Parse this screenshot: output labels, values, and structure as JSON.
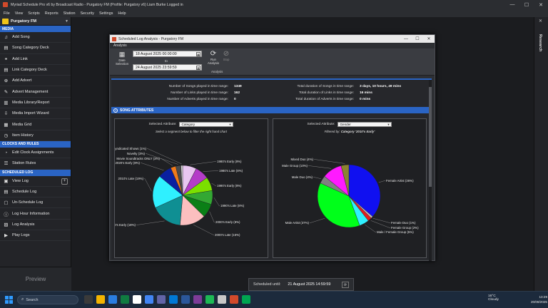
{
  "window": {
    "title": "Myriad Schedule Pro v6 by Broadcast Radio - Purgatory FM (Profile: Purgatory v6) Liam Burke Logged in",
    "controls": [
      "—",
      "☐",
      "✕"
    ]
  },
  "menu": [
    "File",
    "View",
    "Scripts",
    "Reports",
    "Station",
    "Security",
    "Settings",
    "Help"
  ],
  "sidebar": {
    "station": "Purgatory FM",
    "sections": [
      {
        "title": "MEDIA",
        "items": [
          {
            "label": "Add Song",
            "icon": "plus-music-icon"
          },
          {
            "label": "Song Category Deck",
            "icon": "deck-icon"
          },
          {
            "label": "Add Link",
            "icon": "plus-link-icon"
          },
          {
            "label": "Link Category Deck",
            "icon": "deck-icon"
          },
          {
            "label": "Add Advert",
            "icon": "plus-advert-icon"
          },
          {
            "label": "Advert Management",
            "icon": "advert-icon"
          },
          {
            "label": "Media Library/Report",
            "icon": "library-icon"
          },
          {
            "label": "Media Import Wizard",
            "icon": "import-icon"
          },
          {
            "label": "Media Grid",
            "icon": "grid-icon"
          },
          {
            "label": "Item History",
            "icon": "history-icon"
          }
        ]
      },
      {
        "title": "CLOCKS AND RULES",
        "items": [
          {
            "label": "Edit Clock Assignments",
            "icon": "clock-icon"
          },
          {
            "label": "Station Rules",
            "icon": "rules-icon"
          }
        ]
      },
      {
        "title": "SCHEDULED LOG",
        "items": [
          {
            "label": "View Log",
            "icon": "log-icon"
          },
          {
            "label": "Schedule Log",
            "icon": "schedule-icon"
          },
          {
            "label": "Un-Schedule Log",
            "icon": "unschedule-icon"
          },
          {
            "label": "Log Hour Information",
            "icon": "info-icon"
          },
          {
            "label": "Log Analysis",
            "icon": "analysis-icon"
          },
          {
            "label": "Play Logs",
            "icon": "play-icon"
          }
        ]
      }
    ],
    "preview": "Preview"
  },
  "research": {
    "label": "Research",
    "close": "✕"
  },
  "dialog": {
    "title": "Scheduled Log Analysis - Purgatory FM",
    "ribbon_tab": "Analysis",
    "date_selection": "Date Selection",
    "from_date": "18 August 2025 00:00:00",
    "to_label": "to",
    "to_date": "24 August 2025 23:59:59",
    "run_analysis": "Run Analysis",
    "stop": "Stop",
    "group_label": "Analysis",
    "stats_left": [
      {
        "label": "Number of Songs played in time range:",
        "value": "1349"
      },
      {
        "label": "Number of Links played in time range:",
        "value": "162"
      },
      {
        "label": "Number of Adverts played in time range:",
        "value": "0"
      }
    ],
    "stats_right": [
      {
        "label": "Total duration of Songs in time range:",
        "value": "3 days, 10 hours, 49 mins"
      },
      {
        "label": "Total duration of Links in time range:",
        "value": "16 mins"
      },
      {
        "label": "Total duration of Adverts in time range:",
        "value": "0 mins"
      }
    ],
    "attributes_header": "SONG ATTRIBUTES",
    "left_panel": {
      "selected_label": "Selected Attribute:",
      "selected_value": "Category",
      "hint": "Select a segment below to filter the right hand chart"
    },
    "right_panel": {
      "selected_label": "Selected Attribute:",
      "selected_value": "Gender",
      "filtered_label": "Filtered by:",
      "filtered_value": "Category '2010's Early'"
    }
  },
  "chart_data": [
    {
      "type": "pie",
      "title": "",
      "categories": [
        "1980's Early (8%)",
        "1980's Late (8%)",
        "1990's Early (8%)",
        "1990's Late (8%)",
        "2000's Early (8%)",
        "2000's Late (15%)",
        "2010's Early (18%)",
        "2010's Late (19%)",
        "2020's Early (8%)",
        "Movie Soundtracks ONLY (3%)",
        "Novelty (3%)",
        "Syndicated Shows (1%)"
      ],
      "values": [
        8,
        8,
        8,
        8,
        8,
        15,
        18,
        19,
        8,
        3,
        3,
        1
      ],
      "colors": [
        "#e8c6f0",
        "#b43cc8",
        "#7be000",
        "#33a833",
        "#0a7f16",
        "#fbbfbf",
        "#0f8f93",
        "#2ff0ff",
        "#0a1fa0",
        "#f07a1a",
        "#4a4a4a",
        "#d9d9d9"
      ]
    },
    {
      "type": "pie",
      "title": "",
      "categories": [
        "Female Artist (36%)",
        "Female Duo (1%)",
        "Female Group (2%)",
        "Male / Female Group (5%)",
        "Male Artist (37%)",
        "Male Duo (4%)",
        "Male Group (10%)",
        "Mixed Duo (4%)"
      ],
      "values": [
        36,
        1,
        2,
        5,
        37,
        4,
        10,
        4
      ],
      "colors": [
        "#1010f0",
        "#bdbdbd",
        "#e02020",
        "#2ff0ff",
        "#00ff1a",
        "#808080",
        "#ff1aff",
        "#8c8430"
      ]
    }
  ],
  "scheduled_until": {
    "label": "Scheduled until:",
    "value": "21 August 2025 14:59:59",
    "refresh": "⟳"
  },
  "taskbar": {
    "search_placeholder": "Search",
    "weather_temp": "16°C",
    "weather_desc": "Cloudy",
    "time": "13:29",
    "date": "20/08/2025"
  }
}
